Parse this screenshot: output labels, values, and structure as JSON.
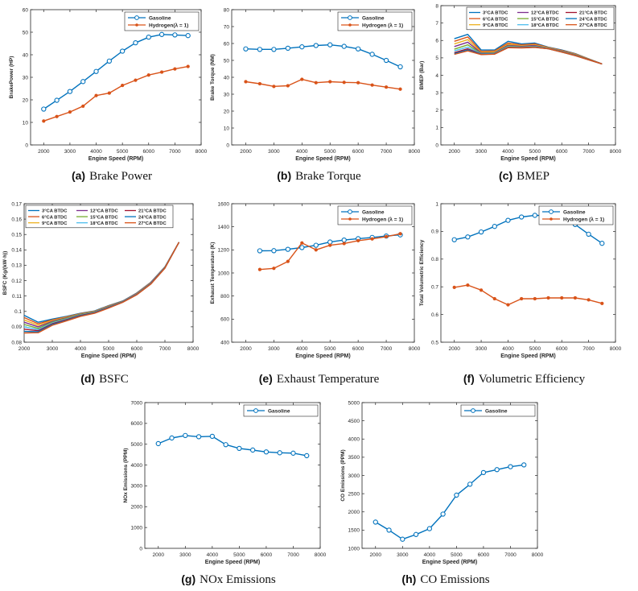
{
  "colors": {
    "blue": "#0072BD",
    "orange": "#D95319",
    "yellow": "#EDB120",
    "purple": "#7E2F8E",
    "green": "#77AC30",
    "cyan": "#4DBEEE",
    "darkred": "#A2142F"
  },
  "chart_data": [
    {
      "id": "a",
      "type": "line",
      "caption_letter": "(a)",
      "caption_text": "Brake Power",
      "xlabel": "Engine Speed (RPM)",
      "ylabel": "BrakePower (HP)",
      "xlim": [
        1500,
        8000
      ],
      "ylim": [
        0,
        60
      ],
      "xticks": [
        2000,
        3000,
        4000,
        5000,
        6000,
        7000,
        8000
      ],
      "yticks": [
        0,
        10,
        20,
        30,
        40,
        50,
        60
      ],
      "legend_position": "top-right",
      "grid": false,
      "series": [
        {
          "name": "Gasoline",
          "marker": "o",
          "color": "#0072BD",
          "x": [
            2000,
            2500,
            3000,
            3500,
            4000,
            4500,
            5000,
            5500,
            6000,
            6500,
            7000,
            7500
          ],
          "y": [
            15.9,
            19.8,
            23.7,
            28.1,
            32.6,
            37.2,
            41.6,
            45.3,
            47.8,
            49.0,
            48.8,
            48.5
          ]
        },
        {
          "name": "Hydrogen(λ = 1)",
          "marker": ".",
          "color": "#D95319",
          "x": [
            2000,
            2500,
            3000,
            3500,
            4000,
            4500,
            5000,
            5500,
            6000,
            6500,
            7000,
            7500
          ],
          "y": [
            10.6,
            12.6,
            14.6,
            17.2,
            21.9,
            23.0,
            26.4,
            28.7,
            31.0,
            32.3,
            33.7,
            34.8
          ]
        }
      ]
    },
    {
      "id": "b",
      "type": "line",
      "caption_letter": "(b)",
      "caption_text": "Brake Torque",
      "xlabel": "Engine Speed (RPM)",
      "ylabel": "Brake Torque (NM)",
      "xlim": [
        1500,
        8000
      ],
      "ylim": [
        0,
        80
      ],
      "xticks": [
        2000,
        3000,
        4000,
        5000,
        6000,
        7000,
        8000
      ],
      "yticks": [
        0,
        10,
        20,
        30,
        40,
        50,
        60,
        70,
        80
      ],
      "legend_position": "top-right",
      "grid": false,
      "series": [
        {
          "name": "Gasoline",
          "marker": "o",
          "color": "#0072BD",
          "x": [
            2000,
            2500,
            3000,
            3500,
            4000,
            4500,
            5000,
            5500,
            6000,
            6500,
            7000,
            7500
          ],
          "y": [
            56.8,
            56.5,
            56.5,
            57.2,
            58.0,
            58.8,
            59.2,
            58.3,
            56.8,
            53.6,
            50.0,
            46.2
          ]
        },
        {
          "name": "Hydrogen (λ = 1)",
          "marker": ".",
          "color": "#D95319",
          "x": [
            2000,
            2500,
            3000,
            3500,
            4000,
            4500,
            5000,
            5500,
            6000,
            6500,
            7000,
            7500
          ],
          "y": [
            37.4,
            36.2,
            34.6,
            35.0,
            38.8,
            36.8,
            37.4,
            37.0,
            36.8,
            35.4,
            34.2,
            33.0
          ]
        }
      ]
    },
    {
      "id": "c",
      "type": "line",
      "caption_letter": "(c)",
      "caption_text": "BMEP",
      "xlabel": "Engine Speed (RPM)",
      "ylabel": "BMEP (Bar)",
      "xlim": [
        1500,
        8000
      ],
      "ylim": [
        0,
        8
      ],
      "xticks": [
        2000,
        3000,
        4000,
        5000,
        6000,
        7000,
        8000
      ],
      "yticks": [
        0,
        1,
        2,
        3,
        4,
        5,
        6,
        7,
        8
      ],
      "legend_position": "top-right",
      "legend_columns": 3,
      "grid": false,
      "x": [
        2000,
        2500,
        3000,
        3500,
        4000,
        4500,
        5000,
        5500,
        6000,
        6500,
        7000,
        7500
      ],
      "series": [
        {
          "name": "3°CA BTDC",
          "color": "#0072BD",
          "y": [
            6.1,
            6.35,
            5.45,
            5.45,
            5.95,
            5.8,
            5.85,
            5.62,
            5.45,
            5.25,
            4.95,
            4.65
          ]
        },
        {
          "name": "6°CA BTDC",
          "color": "#D95319",
          "y": [
            5.95,
            6.2,
            5.38,
            5.4,
            5.85,
            5.75,
            5.8,
            5.6,
            5.43,
            5.23,
            4.94,
            4.65
          ]
        },
        {
          "name": "9°CA BTDC",
          "color": "#EDB120",
          "y": [
            5.8,
            6.05,
            5.32,
            5.35,
            5.78,
            5.7,
            5.75,
            5.58,
            5.41,
            5.21,
            4.93,
            4.65
          ]
        },
        {
          "name": "12°CA BTDC",
          "color": "#7E2F8E",
          "y": [
            5.65,
            5.9,
            5.28,
            5.3,
            5.72,
            5.66,
            5.71,
            5.56,
            5.39,
            5.19,
            4.92,
            4.65
          ]
        },
        {
          "name": "15°CA BTDC",
          "color": "#77AC30",
          "y": [
            5.5,
            5.75,
            5.25,
            5.27,
            5.68,
            5.63,
            5.67,
            5.55,
            5.37,
            5.17,
            4.91,
            4.65
          ]
        },
        {
          "name": "18°CA BTDC",
          "color": "#4DBEEE",
          "y": [
            5.4,
            5.62,
            5.23,
            5.25,
            5.64,
            5.61,
            5.64,
            5.54,
            5.35,
            5.15,
            4.9,
            4.65
          ]
        },
        {
          "name": "21°CA BTDC",
          "color": "#A2142F",
          "y": [
            5.3,
            5.52,
            5.21,
            5.23,
            5.61,
            5.59,
            5.62,
            5.53,
            5.34,
            5.14,
            4.9,
            4.65
          ]
        },
        {
          "name": "24°CA BTDC",
          "color": "#0072BD",
          "y": [
            5.25,
            5.45,
            5.2,
            5.22,
            5.59,
            5.58,
            5.61,
            5.52,
            5.33,
            5.13,
            4.89,
            4.65
          ]
        },
        {
          "name": "27°CA BTDC",
          "color": "#D95319",
          "y": [
            5.2,
            5.4,
            5.19,
            5.21,
            5.58,
            5.57,
            5.6,
            5.52,
            5.33,
            5.13,
            4.89,
            4.65
          ]
        }
      ]
    },
    {
      "id": "d",
      "type": "line",
      "caption_letter": "(d)",
      "caption_text": "BSFC",
      "xlabel": "Engine Speed (RPM)",
      "ylabel": "BSFC (Kg/(kW·h))",
      "xlim": [
        2000,
        8000
      ],
      "ylim": [
        0.08,
        0.17
      ],
      "xticks": [
        2000,
        3000,
        4000,
        5000,
        6000,
        7000,
        8000
      ],
      "yticks": [
        0.08,
        0.09,
        0.1,
        0.11,
        0.12,
        0.13,
        0.14,
        0.15,
        0.16,
        0.17
      ],
      "ytick_labels": [
        "0.08",
        "0.09",
        "0.1",
        "0.11",
        "0.12",
        "0.13",
        "0.14",
        "0.15",
        "0.16",
        "0.17"
      ],
      "legend_position": "top",
      "legend_columns": 3,
      "grid": false,
      "x": [
        2000,
        2500,
        3000,
        3500,
        4000,
        4500,
        5000,
        5500,
        6000,
        6500,
        7000,
        7500
      ],
      "series": [
        {
          "name": "3°CA BTDC",
          "color": "#0072BD",
          "y": [
            0.0975,
            0.093,
            0.095,
            0.0968,
            0.0988,
            0.1003,
            0.1038,
            0.1068,
            0.112,
            0.119,
            0.129,
            0.145
          ]
        },
        {
          "name": "6°CA BTDC",
          "color": "#D95319",
          "y": [
            0.096,
            0.092,
            0.0945,
            0.0965,
            0.0986,
            0.1001,
            0.1036,
            0.1066,
            0.1118,
            0.1188,
            0.1288,
            0.145
          ]
        },
        {
          "name": "9°CA BTDC",
          "color": "#EDB120",
          "y": [
            0.0945,
            0.091,
            0.094,
            0.0962,
            0.0984,
            0.1,
            0.1034,
            0.1065,
            0.1116,
            0.1186,
            0.1287,
            0.145
          ]
        },
        {
          "name": "12°CA BTDC",
          "color": "#7E2F8E",
          "y": [
            0.093,
            0.09,
            0.0935,
            0.0958,
            0.0982,
            0.0998,
            0.1032,
            0.1064,
            0.1115,
            0.1185,
            0.1286,
            0.145
          ]
        },
        {
          "name": "15°CA BTDC",
          "color": "#77AC30",
          "y": [
            0.0915,
            0.089,
            0.093,
            0.0955,
            0.098,
            0.0996,
            0.103,
            0.1063,
            0.1113,
            0.1183,
            0.1285,
            0.145
          ]
        },
        {
          "name": "18°CA BTDC",
          "color": "#4DBEEE",
          "y": [
            0.09,
            0.0882,
            0.0925,
            0.095,
            0.0977,
            0.0994,
            0.1028,
            0.1062,
            0.1112,
            0.1182,
            0.1284,
            0.145
          ]
        },
        {
          "name": "21°CA BTDC",
          "color": "#A2142F",
          "y": [
            0.0885,
            0.0875,
            0.092,
            0.0946,
            0.0974,
            0.0992,
            0.1026,
            0.1061,
            0.111,
            0.118,
            0.1283,
            0.145
          ]
        },
        {
          "name": "24°CA BTDC",
          "color": "#0072BD",
          "y": [
            0.087,
            0.0868,
            0.0915,
            0.0942,
            0.0971,
            0.099,
            0.1024,
            0.106,
            0.1109,
            0.1179,
            0.1282,
            0.145
          ]
        },
        {
          "name": "27°CA BTDC",
          "color": "#D95319",
          "y": [
            0.086,
            0.0862,
            0.091,
            0.0938,
            0.0968,
            0.0988,
            0.1022,
            0.1059,
            0.1108,
            0.1178,
            0.1281,
            0.145
          ]
        }
      ]
    },
    {
      "id": "e",
      "type": "line",
      "caption_letter": "(e)",
      "caption_text": "Exhaust Temperature",
      "xlabel": "Engine Speed (RPM)",
      "ylabel": "Exhaust Temperature (K)",
      "xlim": [
        1500,
        8000
      ],
      "ylim": [
        400,
        1600
      ],
      "xticks": [
        2000,
        3000,
        4000,
        5000,
        6000,
        7000,
        8000
      ],
      "yticks": [
        400,
        600,
        800,
        1000,
        1200,
        1400,
        1600
      ],
      "legend_position": "top-right",
      "grid": false,
      "series": [
        {
          "name": "Gasoline",
          "marker": "o",
          "color": "#0072BD",
          "x": [
            2500,
            3000,
            3500,
            4000,
            4500,
            5000,
            5500,
            6000,
            6500,
            7000,
            7500
          ],
          "y": [
            1192,
            1193,
            1205,
            1220,
            1240,
            1268,
            1285,
            1297,
            1308,
            1320,
            1330
          ]
        },
        {
          "name": "Hydrogen (λ = 1)",
          "marker": ".",
          "color": "#D95319",
          "x": [
            2500,
            3000,
            3500,
            4000,
            4500,
            5000,
            5500,
            6000,
            6500,
            7000,
            7500
          ],
          "y": [
            1030,
            1040,
            1100,
            1260,
            1200,
            1240,
            1255,
            1280,
            1295,
            1315,
            1340
          ]
        }
      ]
    },
    {
      "id": "f",
      "type": "line",
      "caption_letter": "(f)",
      "caption_text": "Volumetric Efficiency",
      "xlabel": "Engine Speed (RPM)",
      "ylabel": "Total Volumetric Efficiency",
      "xlim": [
        1500,
        8000
      ],
      "ylim": [
        0.5,
        1.0
      ],
      "xticks": [
        2000,
        3000,
        4000,
        5000,
        6000,
        7000,
        8000
      ],
      "yticks": [
        0.5,
        0.6,
        0.7,
        0.8,
        0.9,
        1.0
      ],
      "ytick_labels": [
        "0.5",
        "0.6",
        "0.7",
        "0.8",
        "0.9",
        "1"
      ],
      "legend_position": "top-right",
      "grid": false,
      "series": [
        {
          "name": "Gasoline",
          "marker": "o",
          "color": "#0072BD",
          "x": [
            2000,
            2500,
            3000,
            3500,
            4000,
            4500,
            5000,
            5500,
            6000,
            6500,
            7000,
            7500
          ],
          "y": [
            0.87,
            0.88,
            0.898,
            0.918,
            0.94,
            0.952,
            0.958,
            0.957,
            0.946,
            0.925,
            0.89,
            0.857
          ]
        },
        {
          "name": "Hydrogen (λ = 1)",
          "marker": ".",
          "color": "#D95319",
          "x": [
            2000,
            2500,
            3000,
            3500,
            4000,
            4500,
            5000,
            5500,
            6000,
            6500,
            7000,
            7500
          ],
          "y": [
            0.698,
            0.706,
            0.688,
            0.657,
            0.635,
            0.657,
            0.657,
            0.66,
            0.66,
            0.66,
            0.653,
            0.64
          ]
        }
      ]
    },
    {
      "id": "g",
      "type": "line",
      "caption_letter": "(g)",
      "caption_text": "NOx Emissions",
      "xlabel": "Engine Speed (RPM)",
      "ylabel": "NOx Emissions (PPM)",
      "xlim": [
        1500,
        8000
      ],
      "ylim": [
        0,
        7000
      ],
      "xticks": [
        2000,
        3000,
        4000,
        5000,
        6000,
        7000,
        8000
      ],
      "yticks": [
        0,
        1000,
        2000,
        3000,
        4000,
        5000,
        6000,
        7000
      ],
      "legend_position": "top-right",
      "grid": false,
      "series": [
        {
          "name": "Gasoline",
          "marker": "o",
          "color": "#0072BD",
          "x": [
            2000,
            2500,
            3000,
            3500,
            4000,
            4500,
            5000,
            5500,
            6000,
            6500,
            7000,
            7500
          ],
          "y": [
            5030,
            5300,
            5420,
            5360,
            5380,
            4980,
            4800,
            4720,
            4630,
            4590,
            4570,
            4450
          ]
        }
      ]
    },
    {
      "id": "h",
      "type": "line",
      "caption_letter": "(h)",
      "caption_text": "CO Emissions",
      "xlabel": "Engine Speed (RPM)",
      "ylabel": "CO Emissions (PPM)",
      "xlim": [
        1500,
        8000
      ],
      "ylim": [
        1000,
        5000
      ],
      "xticks": [
        2000,
        3000,
        4000,
        5000,
        6000,
        7000,
        8000
      ],
      "yticks": [
        1000,
        1500,
        2000,
        2500,
        3000,
        3500,
        4000,
        4500,
        5000
      ],
      "legend_position": "top-right",
      "grid": false,
      "series": [
        {
          "name": "Gasoline",
          "marker": "o",
          "color": "#0072BD",
          "x": [
            2000,
            2500,
            3000,
            3500,
            4000,
            4500,
            5000,
            5500,
            6000,
            6500,
            7000,
            7500
          ],
          "y": [
            1720,
            1500,
            1250,
            1380,
            1540,
            1940,
            2460,
            2760,
            3080,
            3160,
            3240,
            3290
          ]
        }
      ]
    }
  ]
}
